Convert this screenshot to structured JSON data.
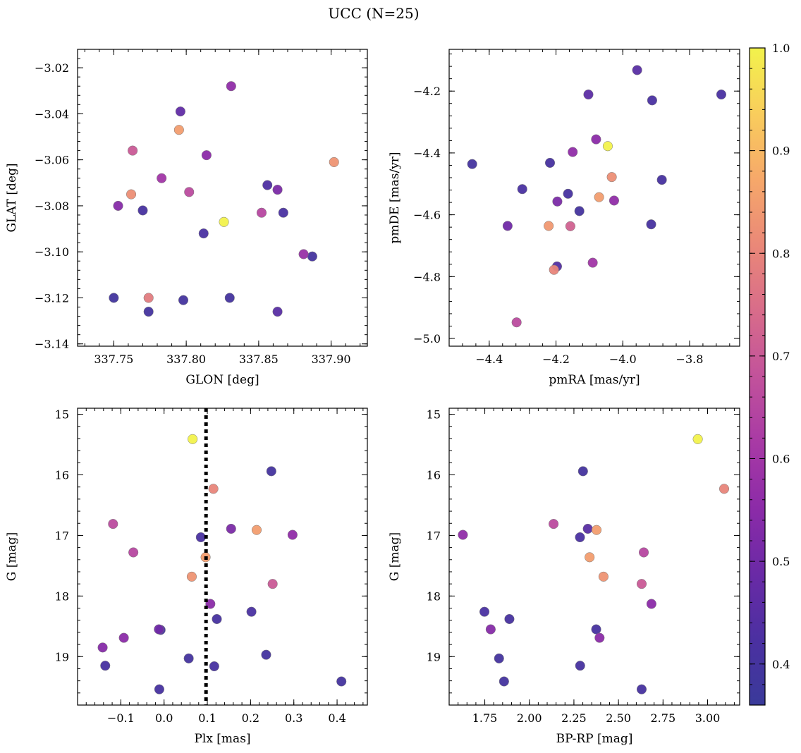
{
  "title": "UCC (N=25)",
  "colorbar": {
    "range": [
      0.36,
      1.0
    ],
    "ticks": [
      "0.4",
      "0.5",
      "0.6",
      "0.7",
      "0.8",
      "0.9",
      "1.0"
    ],
    "colormap": "plasma"
  },
  "chart_data": [
    {
      "type": "scatter",
      "name": "glon-glat",
      "xlabel": "GLON [deg]",
      "ylabel": "GLAT [deg]",
      "xlim": [
        337.725,
        337.925
      ],
      "ylim": [
        -3.141,
        -3.012
      ],
      "invert_y": false,
      "xticks": [
        337.75,
        337.8,
        337.85,
        337.9
      ],
      "xtick_labels": [
        "337.75",
        "337.80",
        "337.85",
        "337.90"
      ],
      "yticks": [
        -3.14,
        -3.12,
        -3.1,
        -3.08,
        -3.06,
        -3.04,
        -3.02
      ],
      "ytick_labels": [
        "−3.14",
        "−3.12",
        "−3.10",
        "−3.08",
        "−3.06",
        "−3.04",
        "−3.02"
      ],
      "points": [
        {
          "x": 337.826,
          "y": -3.087,
          "c": 1.0
        },
        {
          "x": 337.795,
          "y": -3.047,
          "c": 0.85
        },
        {
          "x": 337.762,
          "y": -3.075,
          "c": 0.82
        },
        {
          "x": 337.774,
          "y": -3.12,
          "c": 0.78
        },
        {
          "x": 337.902,
          "y": -3.061,
          "c": 0.83
        },
        {
          "x": 337.763,
          "y": -3.056,
          "c": 0.7
        },
        {
          "x": 337.802,
          "y": -3.074,
          "c": 0.66
        },
        {
          "x": 337.852,
          "y": -3.083,
          "c": 0.65
        },
        {
          "x": 337.831,
          "y": -3.028,
          "c": 0.56
        },
        {
          "x": 337.814,
          "y": -3.058,
          "c": 0.55
        },
        {
          "x": 337.783,
          "y": -3.068,
          "c": 0.6
        },
        {
          "x": 337.753,
          "y": -3.08,
          "c": 0.54
        },
        {
          "x": 337.881,
          "y": -3.101,
          "c": 0.58
        },
        {
          "x": 337.796,
          "y": -3.039,
          "c": 0.47
        },
        {
          "x": 337.863,
          "y": -3.073,
          "c": 0.52
        },
        {
          "x": 337.77,
          "y": -3.082,
          "c": 0.41
        },
        {
          "x": 337.856,
          "y": -3.071,
          "c": 0.43
        },
        {
          "x": 337.867,
          "y": -3.083,
          "c": 0.42
        },
        {
          "x": 337.812,
          "y": -3.092,
          "c": 0.42
        },
        {
          "x": 337.887,
          "y": -3.102,
          "c": 0.4
        },
        {
          "x": 337.75,
          "y": -3.12,
          "c": 0.39
        },
        {
          "x": 337.774,
          "y": -3.126,
          "c": 0.4
        },
        {
          "x": 337.798,
          "y": -3.121,
          "c": 0.4
        },
        {
          "x": 337.83,
          "y": -3.12,
          "c": 0.4
        },
        {
          "x": 337.863,
          "y": -3.126,
          "c": 0.45
        }
      ]
    },
    {
      "type": "scatter",
      "name": "pmra-pmde",
      "xlabel": "pmRA [mas/yr]",
      "ylabel": "pmDE [mas/yr]",
      "xlim": [
        -4.52,
        -3.65
      ],
      "ylim": [
        -5.025,
        -4.065
      ],
      "invert_y": false,
      "xticks": [
        -4.4,
        -4.2,
        -4.0,
        -3.8
      ],
      "xtick_labels": [
        "−4.4",
        "−4.2",
        "−4.0",
        "−3.8"
      ],
      "yticks": [
        -5.0,
        -4.8,
        -4.6,
        -4.4,
        -4.2
      ],
      "ytick_labels": [
        "−5.0",
        "−4.8",
        "−4.6",
        "−4.4",
        "−4.2"
      ],
      "points": [
        {
          "x": -4.045,
          "y": -4.378,
          "c": 1.0
        },
        {
          "x": -4.033,
          "y": -4.478,
          "c": 0.82
        },
        {
          "x": -4.071,
          "y": -4.543,
          "c": 0.85
        },
        {
          "x": -4.222,
          "y": -4.636,
          "c": 0.84
        },
        {
          "x": -4.206,
          "y": -4.778,
          "c": 0.8
        },
        {
          "x": -4.157,
          "y": -4.637,
          "c": 0.72
        },
        {
          "x": -4.318,
          "y": -4.948,
          "c": 0.66
        },
        {
          "x": -4.09,
          "y": -4.755,
          "c": 0.6
        },
        {
          "x": -4.08,
          "y": -4.356,
          "c": 0.55
        },
        {
          "x": -4.15,
          "y": -4.397,
          "c": 0.56
        },
        {
          "x": -4.026,
          "y": -4.554,
          "c": 0.56
        },
        {
          "x": -4.196,
          "y": -4.557,
          "c": 0.52
        },
        {
          "x": -4.345,
          "y": -4.636,
          "c": 0.5
        },
        {
          "x": -4.103,
          "y": -4.211,
          "c": 0.46
        },
        {
          "x": -3.957,
          "y": -4.132,
          "c": 0.45
        },
        {
          "x": -3.912,
          "y": -4.23,
          "c": 0.42
        },
        {
          "x": -3.705,
          "y": -4.211,
          "c": 0.42
        },
        {
          "x": -4.451,
          "y": -4.436,
          "c": 0.4
        },
        {
          "x": -4.301,
          "y": -4.517,
          "c": 0.42
        },
        {
          "x": -4.218,
          "y": -4.432,
          "c": 0.41
        },
        {
          "x": -4.164,
          "y": -4.532,
          "c": 0.41
        },
        {
          "x": -4.13,
          "y": -4.588,
          "c": 0.4
        },
        {
          "x": -3.883,
          "y": -4.487,
          "c": 0.41
        },
        {
          "x": -3.915,
          "y": -4.631,
          "c": 0.41
        },
        {
          "x": -4.197,
          "y": -4.767,
          "c": 0.44
        }
      ]
    },
    {
      "type": "scatter",
      "name": "plx-g",
      "xlabel": "Plx [mas]",
      "ylabel": "G [mag]",
      "xlim": [
        -0.2,
        0.47
      ],
      "ylim": [
        14.9,
        19.8
      ],
      "invert_y": true,
      "vline": {
        "x": 0.097,
        "style": "dotted"
      },
      "xticks": [
        -0.1,
        0.0,
        0.1,
        0.2,
        0.3,
        0.4
      ],
      "xtick_labels": [
        "−0.1",
        "0.0",
        "0.1",
        "0.2",
        "0.3",
        "0.4"
      ],
      "yticks": [
        15,
        16,
        17,
        18,
        19
      ],
      "ytick_labels": [
        "15",
        "16",
        "17",
        "18",
        "19"
      ],
      "points": [
        {
          "x": 0.066,
          "y": 15.41,
          "c": 1.0
        },
        {
          "x": 0.114,
          "y": 16.23,
          "c": 0.8
        },
        {
          "x": 0.214,
          "y": 16.91,
          "c": 0.85
        },
        {
          "x": 0.096,
          "y": 17.36,
          "c": 0.85
        },
        {
          "x": 0.064,
          "y": 17.68,
          "c": 0.83
        },
        {
          "x": 0.251,
          "y": 17.8,
          "c": 0.7
        },
        {
          "x": -0.118,
          "y": 16.81,
          "c": 0.66
        },
        {
          "x": -0.071,
          "y": 17.28,
          "c": 0.65
        },
        {
          "x": 0.297,
          "y": 16.99,
          "c": 0.56
        },
        {
          "x": 0.155,
          "y": 16.89,
          "c": 0.52
        },
        {
          "x": 0.107,
          "y": 18.13,
          "c": 0.55
        },
        {
          "x": -0.093,
          "y": 18.69,
          "c": 0.55
        },
        {
          "x": -0.142,
          "y": 18.85,
          "c": 0.54
        },
        {
          "x": -0.012,
          "y": 18.55,
          "c": 0.5
        },
        {
          "x": 0.085,
          "y": 17.03,
          "c": 0.42
        },
        {
          "x": 0.248,
          "y": 15.94,
          "c": 0.4
        },
        {
          "x": 0.202,
          "y": 18.26,
          "c": 0.42
        },
        {
          "x": 0.122,
          "y": 18.38,
          "c": 0.41
        },
        {
          "x": -0.008,
          "y": 18.56,
          "c": 0.41
        },
        {
          "x": 0.236,
          "y": 18.97,
          "c": 0.4
        },
        {
          "x": 0.057,
          "y": 19.03,
          "c": 0.4
        },
        {
          "x": -0.136,
          "y": 19.15,
          "c": 0.41
        },
        {
          "x": 0.116,
          "y": 19.16,
          "c": 0.41
        },
        {
          "x": -0.011,
          "y": 19.54,
          "c": 0.41
        },
        {
          "x": 0.41,
          "y": 19.41,
          "c": 0.4
        }
      ]
    },
    {
      "type": "scatter",
      "name": "bprp-g",
      "xlabel": "BP-RP [mag]",
      "ylabel": "G [mag]",
      "xlim": [
        1.55,
        3.18
      ],
      "ylim": [
        14.9,
        19.8
      ],
      "invert_y": true,
      "xticks": [
        1.75,
        2.0,
        2.25,
        2.5,
        2.75,
        3.0
      ],
      "xtick_labels": [
        "1.75",
        "2.00",
        "2.25",
        "2.50",
        "2.75",
        "3.00"
      ],
      "yticks": [
        15,
        16,
        17,
        18,
        19
      ],
      "ytick_labels": [
        "15",
        "16",
        "17",
        "18",
        "19"
      ],
      "points": [
        {
          "x": 2.945,
          "y": 15.41,
          "c": 1.0
        },
        {
          "x": 3.093,
          "y": 16.23,
          "c": 0.8
        },
        {
          "x": 2.377,
          "y": 16.91,
          "c": 0.85
        },
        {
          "x": 2.338,
          "y": 17.36,
          "c": 0.85
        },
        {
          "x": 2.416,
          "y": 17.68,
          "c": 0.83
        },
        {
          "x": 2.63,
          "y": 17.8,
          "c": 0.7
        },
        {
          "x": 2.136,
          "y": 16.81,
          "c": 0.66
        },
        {
          "x": 2.642,
          "y": 17.28,
          "c": 0.65
        },
        {
          "x": 1.627,
          "y": 16.99,
          "c": 0.56
        },
        {
          "x": 2.685,
          "y": 18.13,
          "c": 0.55
        },
        {
          "x": 2.394,
          "y": 18.69,
          "c": 0.55
        },
        {
          "x": 1.783,
          "y": 18.55,
          "c": 0.54
        },
        {
          "x": 2.328,
          "y": 16.89,
          "c": 0.45
        },
        {
          "x": 2.301,
          "y": 15.94,
          "c": 0.4
        },
        {
          "x": 2.284,
          "y": 17.03,
          "c": 0.42
        },
        {
          "x": 1.748,
          "y": 18.26,
          "c": 0.42
        },
        {
          "x": 1.888,
          "y": 18.38,
          "c": 0.41
        },
        {
          "x": 2.375,
          "y": 18.55,
          "c": 0.41
        },
        {
          "x": 1.83,
          "y": 19.03,
          "c": 0.4
        },
        {
          "x": 2.285,
          "y": 19.15,
          "c": 0.41
        },
        {
          "x": 1.858,
          "y": 19.41,
          "c": 0.4
        },
        {
          "x": 2.63,
          "y": 19.54,
          "c": 0.41
        }
      ]
    }
  ]
}
